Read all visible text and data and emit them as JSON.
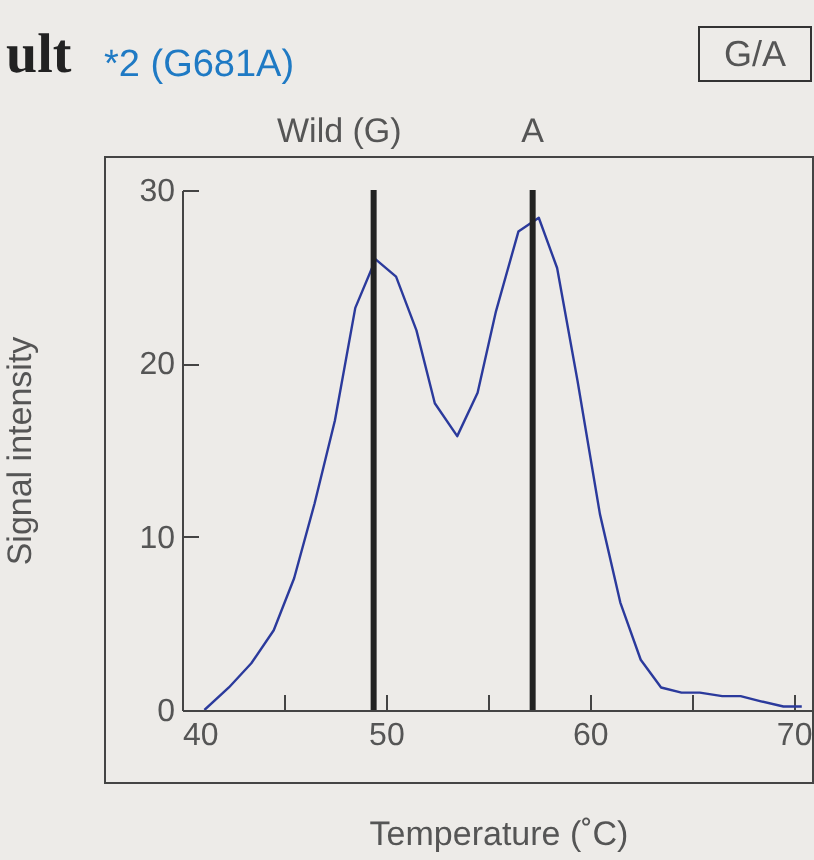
{
  "chart_data": {
    "type": "line",
    "title": "*2 (G681A)",
    "xlabel": "Temperature (˚C)",
    "ylabel": "Signal intensity",
    "x": [
      41.1,
      42.3,
      43.4,
      44.5,
      45.5,
      46.5,
      47.5,
      48.5,
      49.5,
      50.5,
      51.5,
      52.4,
      53.5,
      54.5,
      55.4,
      56.5,
      57.5,
      58.4,
      59.4,
      60.5,
      61.5,
      62.5,
      63.5,
      64.5,
      65.4,
      66.5,
      67.4,
      68.4,
      69.5,
      70.4
    ],
    "series": [
      {
        "color": "#2b3a9c",
        "values": [
          0,
          1.3,
          2.7,
          4.6,
          7.6,
          11.9,
          16.7,
          23.2,
          26.0,
          25.0,
          21.9,
          17.7,
          15.8,
          18.3,
          23.0,
          27.6,
          28.4,
          25.5,
          19.0,
          11.3,
          6.2,
          2.9,
          1.3,
          1.0,
          1.0,
          0.8,
          0.8,
          0.5,
          0.2,
          0.2
        ]
      }
    ],
    "xlim": [
      40,
      71
    ],
    "ylim": [
      0,
      30
    ],
    "xticks": [
      40,
      {
        "value": 45,
        "label": null
      },
      50,
      {
        "value": 55,
        "label": null
      },
      60,
      {
        "value": 65,
        "label": null
      },
      70
    ],
    "yticks": [
      0,
      10,
      20,
      30
    ],
    "ref_lines": [
      {
        "axis": "x",
        "value": 49.4,
        "label": "Wild (G)",
        "color": "#222222"
      },
      {
        "axis": "x",
        "value": 57.2,
        "label": "A",
        "color": "#222222"
      }
    ],
    "annotations": [
      "ult",
      "G/A"
    ]
  }
}
